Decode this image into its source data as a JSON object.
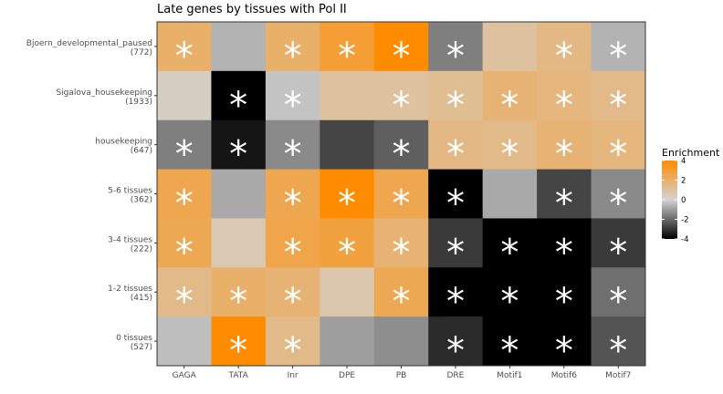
{
  "chart_data": {
    "type": "heatmap",
    "title": "Late genes by tissues with Pol II",
    "x_categories": [
      "GAGA",
      "TATA",
      "Inr",
      "DPE",
      "PB",
      "DRE",
      "Motif1",
      "Motif6",
      "Motif7"
    ],
    "y_categories": [
      {
        "name": "Bjoern_developmental_paused",
        "count": "(772)"
      },
      {
        "name": "Sigalova_housekeeping",
        "count": "(1933)"
      },
      {
        "name": "housekeeping",
        "count": "(647)"
      },
      {
        "name": "5-6 tissues",
        "count": "(362)"
      },
      {
        "name": "3-4 tissues",
        "count": "(222)"
      },
      {
        "name": "1-2 tissues",
        "count": "(415)"
      },
      {
        "name": "0 tissues",
        "count": "(527)"
      }
    ],
    "values": [
      [
        2.0,
        -0.6,
        2.0,
        3.0,
        4.0,
        -1.6,
        1.0,
        1.5,
        -0.6
      ],
      [
        0.3,
        -4.0,
        -0.3,
        1.0,
        1.0,
        1.2,
        1.8,
        1.6,
        1.4
      ],
      [
        -1.6,
        -3.6,
        -1.4,
        -2.7,
        -2.2,
        1.5,
        1.4,
        1.8,
        1.6
      ],
      [
        2.5,
        -0.8,
        2.5,
        4.0,
        2.5,
        -4.0,
        -0.8,
        -2.7,
        -1.4
      ],
      [
        2.4,
        0.6,
        2.6,
        2.8,
        1.8,
        -2.9,
        -4.0,
        -4.0,
        -2.9
      ],
      [
        1.4,
        2.0,
        1.8,
        0.7,
        2.4,
        -4.0,
        -4.0,
        -4.0,
        -1.9
      ],
      [
        -0.4,
        4.0,
        1.4,
        -1.0,
        -1.3,
        -3.2,
        -4.0,
        -4.0,
        -2.4
      ]
    ],
    "significant": [
      [
        1,
        0,
        1,
        1,
        1,
        1,
        0,
        1,
        1
      ],
      [
        0,
        1,
        1,
        0,
        1,
        1,
        1,
        1,
        1
      ],
      [
        1,
        1,
        1,
        0,
        1,
        1,
        1,
        1,
        1
      ],
      [
        1,
        0,
        1,
        1,
        1,
        1,
        0,
        1,
        1
      ],
      [
        1,
        0,
        1,
        1,
        1,
        1,
        1,
        1,
        1
      ],
      [
        1,
        1,
        1,
        0,
        1,
        1,
        1,
        1,
        1
      ],
      [
        0,
        1,
        1,
        0,
        0,
        1,
        1,
        1,
        1
      ]
    ],
    "significance_marker": "*",
    "legend": {
      "title": "Enrichment",
      "ticks": [
        4,
        2,
        0,
        -2,
        -4
      ],
      "range": [
        -4,
        4
      ],
      "placement": "right"
    },
    "colors": {
      "low": "#000000",
      "mid": "#d3d3d3",
      "high": "#ff8c00"
    },
    "grid": false
  }
}
